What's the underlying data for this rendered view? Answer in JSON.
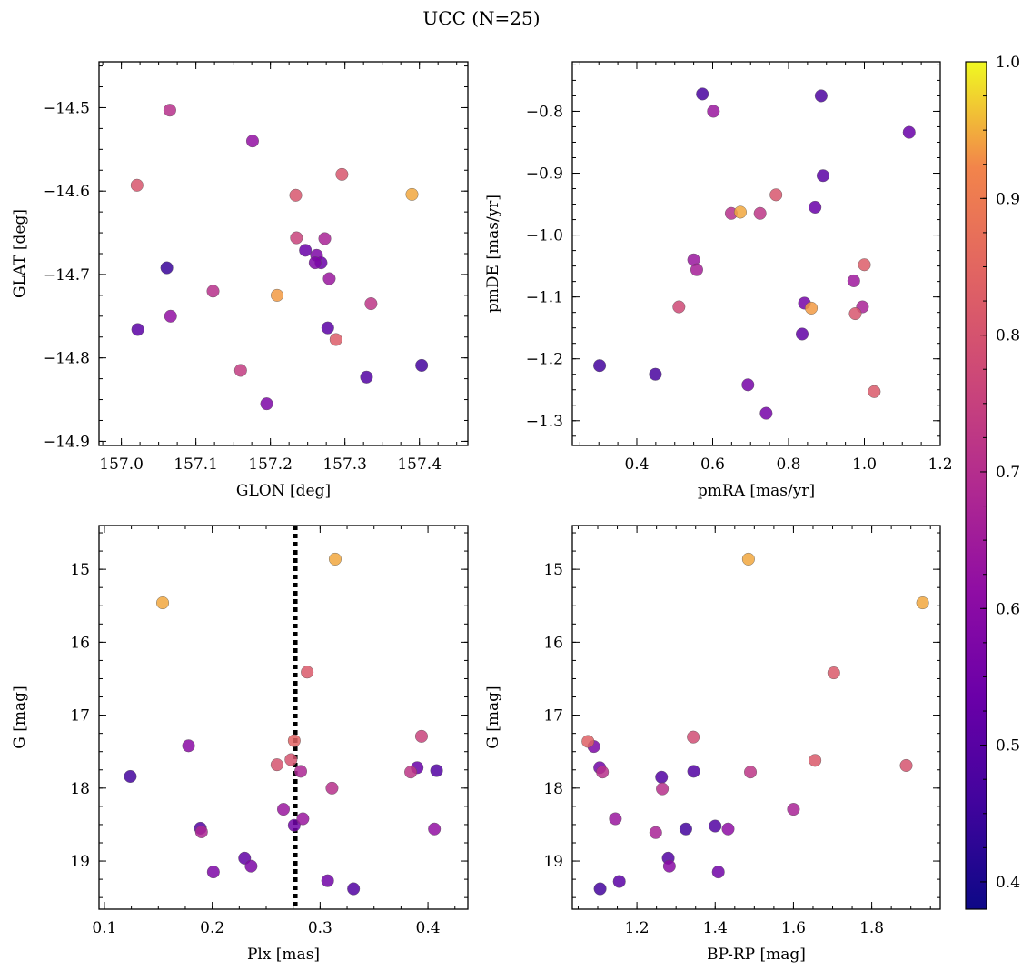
{
  "figure": {
    "title": "UCC (N=25)"
  },
  "colorbar": {
    "vmin": 0.38,
    "vmax": 1.0,
    "ticks": [
      0.4,
      0.5,
      0.6,
      0.7,
      0.8,
      0.9,
      1.0
    ],
    "tick_labels": [
      "0.4",
      "0.5",
      "0.6",
      "0.7",
      "0.8",
      "0.9",
      "1.0"
    ],
    "colormap": "plasma"
  },
  "chart_data": [
    {
      "type": "scatter",
      "panel": "top-left",
      "xlabel": "GLON [deg]",
      "ylabel": "GLAT [deg]",
      "xlim": [
        156.97,
        157.465
      ],
      "ylim": [
        -14.905,
        -14.445
      ],
      "xticks": [
        157.0,
        157.1,
        157.2,
        157.3,
        157.4
      ],
      "xtick_labels": [
        "157.0",
        "157.1",
        "157.2",
        "157.3",
        "157.4"
      ],
      "yticks": [
        -14.9,
        -14.8,
        -14.7,
        -14.6,
        -14.5
      ],
      "ytick_labels": [
        "−14.9",
        "−14.8",
        "−14.7",
        "−14.6",
        "−14.5"
      ],
      "x": [
        157.065,
        157.176,
        157.296,
        157.021,
        157.234,
        157.39,
        157.235,
        157.273,
        157.247,
        157.262,
        157.268,
        157.26,
        157.061,
        157.279,
        157.123,
        157.209,
        157.335,
        157.066,
        157.022,
        157.277,
        157.288,
        157.403,
        157.16,
        157.329,
        157.195
      ],
      "y": [
        -14.503,
        -14.54,
        -14.58,
        -14.593,
        -14.605,
        -14.604,
        -14.656,
        -14.657,
        -14.671,
        -14.677,
        -14.686,
        -14.686,
        -14.692,
        -14.705,
        -14.72,
        -14.725,
        -14.735,
        -14.75,
        -14.766,
        -14.764,
        -14.778,
        -14.809,
        -14.815,
        -14.823,
        -14.855
      ],
      "color_values": [
        0.7,
        0.6,
        0.82,
        0.82,
        0.82,
        0.98,
        0.76,
        0.66,
        0.5,
        0.55,
        0.5,
        0.55,
        0.4,
        0.62,
        0.7,
        0.97,
        0.72,
        0.6,
        0.47,
        0.47,
        0.84,
        0.42,
        0.74,
        0.45,
        0.55
      ]
    },
    {
      "type": "scatter",
      "panel": "top-right",
      "xlabel": "pmRA [mas/yr]",
      "ylabel": "pmDE [mas/yr]",
      "xlim": [
        0.23,
        1.2
      ],
      "ylim": [
        -1.34,
        -0.72
      ],
      "xticks": [
        0.4,
        0.6,
        0.8,
        1.0,
        1.2
      ],
      "xtick_labels": [
        "0.4",
        "0.6",
        "0.8",
        "1.0",
        "1.2"
      ],
      "yticks": [
        -1.3,
        -1.2,
        -1.1,
        -1.0,
        -0.9,
        -0.8
      ],
      "ytick_labels": [
        "−1.3",
        "−1.2",
        "−1.1",
        "−1.0",
        "−0.9",
        "−0.8"
      ],
      "x": [
        0.573,
        0.886,
        0.602,
        1.118,
        0.891,
        0.767,
        0.87,
        0.649,
        0.673,
        0.725,
        0.55,
        0.558,
        1.0,
        0.972,
        0.842,
        0.511,
        0.995,
        0.86,
        0.976,
        0.836,
        1.026,
        0.302,
        0.449,
        0.693,
        0.741
      ],
      "y": [
        -0.772,
        -0.775,
        -0.8,
        -0.834,
        -0.904,
        -0.935,
        -0.955,
        -0.965,
        -0.963,
        -0.965,
        -1.04,
        -1.056,
        -1.048,
        -1.074,
        -1.11,
        -1.116,
        -1.116,
        -1.118,
        -1.127,
        -1.16,
        -1.253,
        -1.211,
        -1.225,
        -1.242,
        -1.288
      ],
      "color_values": [
        0.43,
        0.44,
        0.62,
        0.5,
        0.47,
        0.82,
        0.5,
        0.7,
        0.98,
        0.72,
        0.62,
        0.65,
        0.84,
        0.63,
        0.53,
        0.78,
        0.66,
        0.97,
        0.82,
        0.48,
        0.83,
        0.42,
        0.43,
        0.53,
        0.53
      ]
    },
    {
      "type": "scatter",
      "panel": "bottom-left",
      "xlabel": "Plx [mas]",
      "ylabel": "G [mag]",
      "xlim": [
        0.095,
        0.437
      ],
      "ylim": [
        19.66,
        14.4
      ],
      "xticks": [
        0.1,
        0.2,
        0.3,
        0.4
      ],
      "xtick_labels": [
        "0.1",
        "0.2",
        "0.3",
        "0.4"
      ],
      "yticks": [
        15,
        16,
        17,
        18,
        19
      ],
      "ytick_labels": [
        "15",
        "16",
        "17",
        "18",
        "19"
      ],
      "vline_x": 0.277,
      "x": [
        0.314,
        0.154,
        0.288,
        0.394,
        0.178,
        0.276,
        0.26,
        0.273,
        0.282,
        0.384,
        0.39,
        0.408,
        0.124,
        0.311,
        0.266,
        0.284,
        0.276,
        0.189,
        0.19,
        0.406,
        0.23,
        0.236,
        0.201,
        0.307,
        0.331
      ],
      "y": [
        14.86,
        15.46,
        16.41,
        17.29,
        17.42,
        17.35,
        17.68,
        17.61,
        17.77,
        17.78,
        17.72,
        17.76,
        17.84,
        18.0,
        18.29,
        18.42,
        18.51,
        18.55,
        18.6,
        18.56,
        18.96,
        19.07,
        19.15,
        19.27,
        19.38
      ],
      "color_values": [
        0.98,
        0.98,
        0.83,
        0.76,
        0.58,
        0.86,
        0.81,
        0.81,
        0.67,
        0.72,
        0.5,
        0.45,
        0.42,
        0.7,
        0.62,
        0.62,
        0.52,
        0.45,
        0.67,
        0.6,
        0.48,
        0.55,
        0.55,
        0.52,
        0.45
      ]
    },
    {
      "type": "scatter",
      "panel": "bottom-right",
      "xlabel": "BP-RP [mag]",
      "ylabel": "G [mag]",
      "xlim": [
        1.035,
        1.975
      ],
      "ylim": [
        19.66,
        14.4
      ],
      "xticks": [
        1.2,
        1.4,
        1.6,
        1.8
      ],
      "xtick_labels": [
        "1.2",
        "1.4",
        "1.6",
        "1.8"
      ],
      "yticks": [
        15,
        16,
        17,
        18,
        19
      ],
      "ytick_labels": [
        "15",
        "16",
        "17",
        "18",
        "19"
      ],
      "x": [
        1.485,
        1.93,
        1.703,
        1.344,
        1.075,
        1.09,
        1.655,
        1.888,
        1.105,
        1.112,
        1.345,
        1.49,
        1.263,
        1.265,
        1.6,
        1.145,
        1.4,
        1.433,
        1.325,
        1.248,
        1.28,
        1.283,
        1.408,
        1.155,
        1.106
      ],
      "y": [
        14.86,
        15.46,
        16.42,
        17.3,
        17.36,
        17.43,
        17.62,
        17.69,
        17.72,
        17.78,
        17.77,
        17.78,
        17.85,
        18.01,
        18.29,
        18.42,
        18.52,
        18.56,
        18.56,
        18.61,
        18.96,
        19.07,
        19.15,
        19.28,
        19.38
      ],
      "color_values": [
        0.98,
        0.98,
        0.83,
        0.79,
        0.85,
        0.55,
        0.83,
        0.81,
        0.52,
        0.7,
        0.45,
        0.72,
        0.45,
        0.7,
        0.66,
        0.62,
        0.45,
        0.59,
        0.42,
        0.66,
        0.45,
        0.58,
        0.52,
        0.47,
        0.42
      ]
    }
  ]
}
